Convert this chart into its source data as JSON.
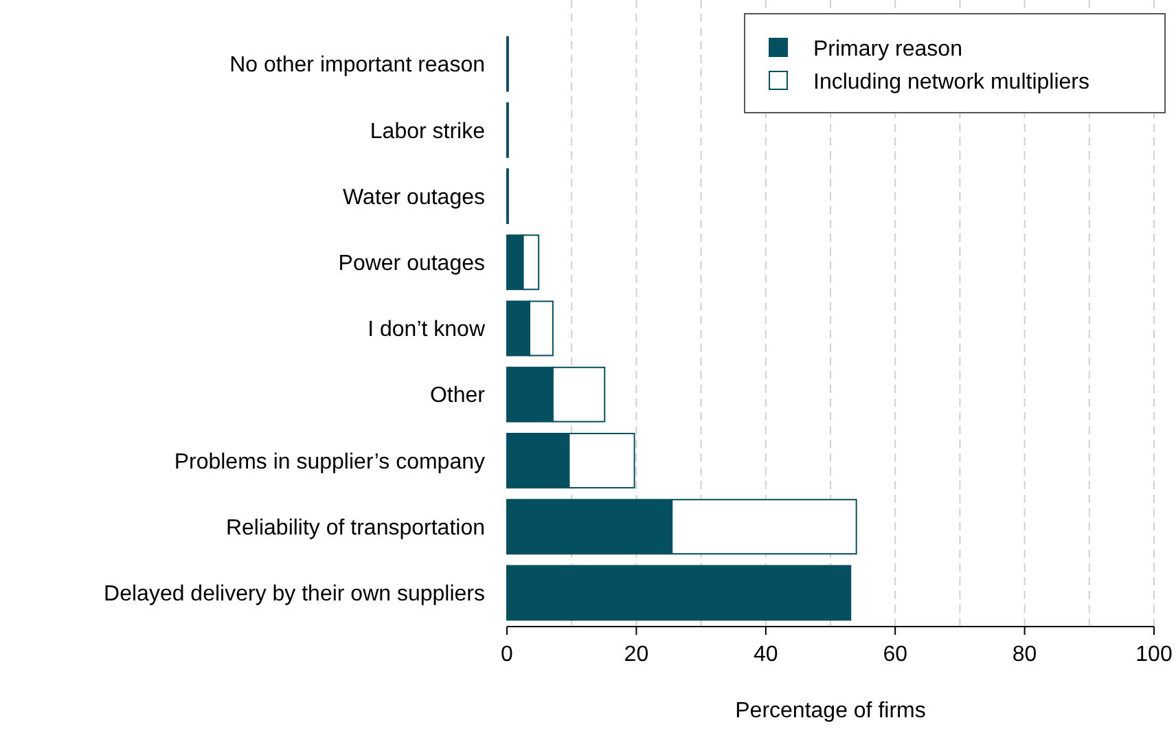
{
  "chart_data": {
    "type": "bar",
    "orientation": "horizontal",
    "stacked": true,
    "categories": [
      "No other important reason",
      "Labor strike",
      "Water outages",
      "Power outages",
      "I don’t know",
      "Other",
      "Problems in supplier’s company",
      "Reliability of transportation",
      "Delayed delivery by their own suppliers"
    ],
    "series": [
      {
        "name": "Primary reason",
        "color": "#044f60",
        "values": [
          0.2,
          0.2,
          0.2,
          2.5,
          3.5,
          7.1,
          9.6,
          25.5,
          53.1
        ]
      },
      {
        "name": "Including network multipliers",
        "color": "#ffffff",
        "values": [
          0,
          0,
          0,
          2.4,
          3.6,
          8,
          10.1,
          28.5,
          0
        ]
      }
    ],
    "xlabel": "Percentage of firms",
    "xlim": [
      0,
      100
    ],
    "xticks": [
      0,
      {
        "value": 10,
        "label": null
      },
      20,
      {
        "value": 30,
        "label": null
      },
      40,
      {
        "value": 50,
        "label": null
      },
      60,
      {
        "value": 70,
        "label": null
      },
      80,
      {
        "value": 90,
        "label": null
      },
      100
    ],
    "grid": "x",
    "legend": "top right"
  }
}
